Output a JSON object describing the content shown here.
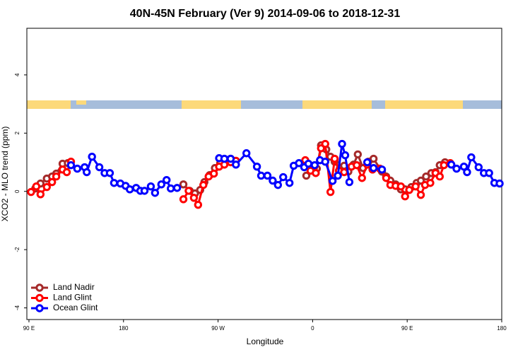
{
  "chart_data": {
    "type": "line",
    "title": "40N-45N February (Ver 9)   2014-09-06 to 2018-12-31",
    "x_label": "Longitude",
    "y_label": "XCO2 - MLO trend (ppm)",
    "xlim": [
      88,
      540
    ],
    "ylim": [
      -4.4,
      5.6
    ],
    "xticks": [
      {
        "value": 90,
        "label": "90 E"
      },
      180,
      {
        "value": 270,
        "label": "90 W"
      },
      {
        "value": 360,
        "label": "0"
      },
      {
        "value": 450,
        "label": "90 E"
      },
      {
        "value": 540,
        "label": "180"
      }
    ],
    "yticks": [
      -4,
      -2,
      0,
      2,
      4
    ],
    "legend": "bottom-left",
    "series": [
      {
        "name": "Land Nadir",
        "color": "#a52a2a",
        "x": [
          96,
          101,
          107,
          112,
          116,
          122,
          127,
          null,
          237,
          243,
          248,
          253,
          257,
          262,
          267,
          272,
          282,
          null,
          354,
          358,
          364,
          368,
          373,
          377,
          381,
          386,
          390,
          394,
          399,
          403,
          408,
          413,
          418,
          426,
          430,
          434,
          439,
          444,
          448,
          454,
          459,
          463,
          468,
          473,
          477,
          481,
          486
        ],
        "values": [
          0.1,
          0.27,
          0.44,
          0.51,
          0.61,
          0.95,
          0.97,
          null,
          0.24,
          0.02,
          -0.07,
          0.05,
          0.32,
          0.56,
          0.8,
          0.97,
          1.12,
          null,
          0.54,
          0.88,
          0.78,
          1.58,
          1.44,
          1.19,
          1.02,
          0.8,
          0.88,
          0.68,
          0.92,
          1.27,
          0.8,
          1.02,
          1.12,
          0.68,
          0.51,
          0.37,
          0.24,
          0.07,
          0.07,
          0.15,
          0.29,
          0.37,
          0.51,
          0.63,
          0.66,
          0.9,
          1.0
        ]
      },
      {
        "name": "Land Glint",
        "color": "#ff0000",
        "x": [
          92,
          97,
          101,
          107,
          112,
          116,
          122,
          126,
          130,
          null,
          237,
          242,
          247,
          251,
          256,
          261,
          266,
          271,
          276,
          282,
          287,
          null,
          353,
          358,
          363,
          368,
          372,
          377,
          381,
          385,
          390,
          397,
          402,
          407,
          412,
          417,
          424,
          430,
          434,
          439,
          444,
          448,
          452,
          458,
          463,
          467,
          472,
          477,
          481,
          485,
          491
        ],
        "values": [
          -0.02,
          0.17,
          -0.1,
          0.15,
          0.32,
          0.51,
          0.75,
          0.66,
          1.02,
          null,
          -0.27,
          0.02,
          -0.22,
          -0.46,
          0.22,
          0.51,
          0.61,
          0.85,
          0.92,
          1.0,
          1.05,
          null,
          1.07,
          0.71,
          0.63,
          1.48,
          1.63,
          -0.02,
          1.12,
          0.71,
          0.66,
          0.85,
          0.9,
          0.46,
          0.92,
          0.75,
          0.78,
          0.46,
          0.22,
          0.19,
          0.17,
          -0.17,
          0.05,
          0.17,
          -0.12,
          0.22,
          0.29,
          0.63,
          0.51,
          0.9,
          0.97
        ]
      },
      {
        "name": "Ocean Glint",
        "color": "#0000ff",
        "x": [
          130,
          136,
          143,
          145,
          150,
          157,
          162,
          167,
          171,
          177,
          182,
          186,
          192,
          196,
          200,
          206,
          210,
          216,
          221,
          225,
          231,
          null,
          271,
          276,
          282,
          287,
          297,
          307,
          311,
          317,
          322,
          327,
          332,
          338,
          342,
          347,
          352,
          356,
          362,
          367,
          372,
          379,
          384,
          388,
          391,
          395,
          null,
          412,
          418,
          426,
          null,
          492,
          497,
          504,
          507,
          511,
          518,
          523,
          528,
          533,
          538
        ],
        "values": [
          0.9,
          0.78,
          0.83,
          0.66,
          1.19,
          0.83,
          0.63,
          0.63,
          0.29,
          0.27,
          0.19,
          0.07,
          0.12,
          0.02,
          0.02,
          0.17,
          -0.05,
          0.24,
          0.39,
          0.1,
          0.12,
          null,
          1.14,
          1.12,
          1.12,
          0.92,
          1.31,
          0.85,
          0.54,
          0.54,
          0.37,
          0.22,
          0.49,
          0.29,
          0.88,
          0.97,
          0.83,
          0.95,
          0.9,
          1.07,
          1.02,
          0.36,
          0.54,
          1.63,
          1.24,
          0.32,
          null,
          1.0,
          0.8,
          0.75,
          null,
          0.92,
          0.78,
          0.85,
          0.66,
          1.17,
          0.83,
          0.63,
          0.63,
          0.29,
          0.27
        ]
      }
    ]
  }
}
